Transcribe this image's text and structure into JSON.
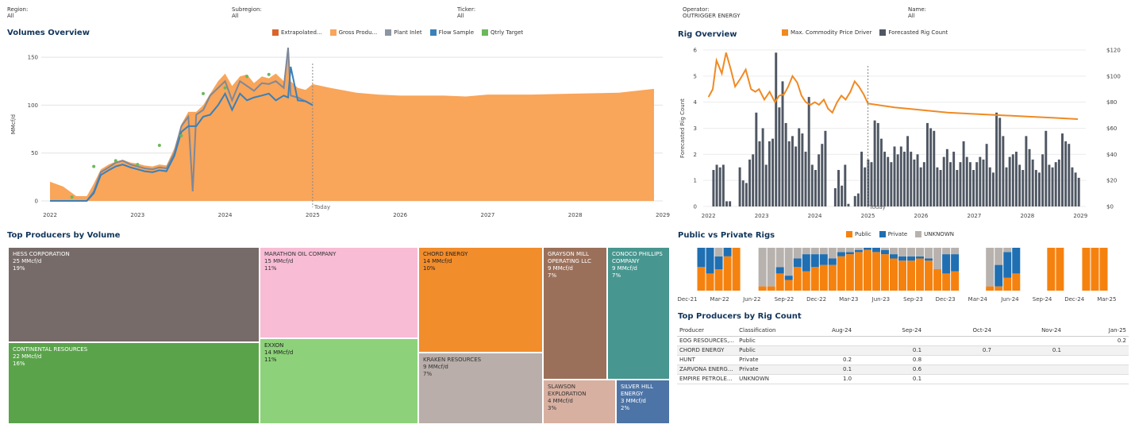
{
  "filters": [
    {
      "label": "Region:",
      "value": "All"
    },
    {
      "label": "Subregion:",
      "value": "All"
    },
    {
      "label": "Ticker:",
      "value": "All"
    },
    {
      "label": "Operator:",
      "value": "OUTRIGGER ENERGY"
    },
    {
      "label": "Name:",
      "value": "All"
    }
  ],
  "volumes": {
    "title": "Volumes Overview",
    "legend": [
      {
        "label": "Extrapolated...",
        "color": "#d9652b"
      },
      {
        "label": "Gross Produ...",
        "color": "#f9a55a"
      },
      {
        "label": "Plant Inlet",
        "color": "#8c95a3"
      },
      {
        "label": "Flow Sample",
        "color": "#3a80b9"
      },
      {
        "label": "Qtrly Target",
        "color": "#6cb85a"
      }
    ],
    "today_label": "Today"
  },
  "rigs": {
    "title": "Rig Overview",
    "legend": [
      {
        "label": "Max. Commodity Price Driver",
        "color": "#f08a24"
      },
      {
        "label": "Forecasted Rig Count",
        "color": "#4f5763"
      }
    ],
    "today_label": "Today"
  },
  "treemap": {
    "title": "Top Producers by Volume",
    "cells": [
      {
        "name": "HESS CORPORATION",
        "volume": "25 MMcf/d",
        "share": "19%",
        "color": "#766b68",
        "text": "#ffffff"
      },
      {
        "name": "CONTINENTAL RESOURCES",
        "volume": "22 MMcf/d",
        "share": "16%",
        "color": "#5aa34b",
        "text": "#ffffff"
      },
      {
        "name": "MARATHON OIL COMPANY",
        "volume": "15 MMcf/d",
        "share": "11%",
        "color": "#f8bcd5",
        "text": "#333333"
      },
      {
        "name": "EXXON",
        "volume": "14 MMcf/d",
        "share": "11%",
        "color": "#8dd27a",
        "text": "#222222"
      },
      {
        "name": "CHORD ENERGY",
        "volume": "14 MMcf/d",
        "share": "10%",
        "color": "#f28d2c",
        "text": "#222222"
      },
      {
        "name": "KRAKEN RESOURCES",
        "volume": "9 MMcf/d",
        "share": "7%",
        "color": "#b9aea9",
        "text": "#333333"
      },
      {
        "name": "GRAYSON MILL OPERATING LLC",
        "volume": "9 MMcf/d",
        "share": "7%",
        "color": "#9b705a",
        "text": "#ffffff"
      },
      {
        "name": "SLAWSON EXPLORATION",
        "volume": "4 MMcf/d",
        "share": "3%",
        "color": "#d8b0a1",
        "text": "#333333"
      },
      {
        "name": "CONOCO PHILLIPS COMPANY",
        "volume": "9 MMcf/d",
        "share": "7%",
        "color": "#47968f",
        "text": "#ffffff"
      },
      {
        "name": "SILVER HILL ENERGY",
        "volume": "3 MMcf/d",
        "share": "2%",
        "color": "#4d74a6",
        "text": "#ffffff"
      }
    ]
  },
  "pvp": {
    "title": "Public vs Private Rigs",
    "legend": [
      {
        "label": "Public",
        "color": "#f5820f"
      },
      {
        "label": "Private",
        "color": "#1f6fb2"
      },
      {
        "label": "UNKNOWN",
        "color": "#b8b2ae"
      }
    ]
  },
  "rig_table": {
    "title": "Top Producers by Rig Count",
    "columns": [
      "Producer",
      "Classification",
      "Aug-24",
      "Sep-24",
      "Oct-24",
      "Nov-24",
      "Jan-25"
    ],
    "rows": [
      [
        "EOG RESOURCES,...",
        "Public",
        "",
        "",
        "",
        "",
        "0.2"
      ],
      [
        "CHORD ENERGY",
        "Public",
        "",
        "0.1",
        "0.7",
        "0.1",
        ""
      ],
      [
        "HUNT",
        "Private",
        "0.2",
        "0.8",
        "",
        "",
        ""
      ],
      [
        "ZARVONA ENERG...",
        "Private",
        "0.1",
        "0.6",
        "",
        "",
        ""
      ],
      [
        "EMPIRE PETROLE...",
        "UNKNOWN",
        "1.0",
        "0.1",
        "",
        "",
        ""
      ]
    ]
  },
  "chart_data": [
    {
      "id": "volumes",
      "type": "area",
      "title": "Volumes Overview",
      "ylabel": "MMcf/d",
      "xlabel": "",
      "ylim": [
        0,
        160
      ],
      "yticks": [
        0,
        50,
        100,
        150
      ],
      "xlim": [
        2021.9,
        2029.0
      ],
      "xticks": [
        2022,
        2023,
        2024,
        2025,
        2026,
        2027,
        2028,
        2029
      ],
      "today": 2025.0,
      "series": [
        {
          "name": "Gross Production",
          "kind": "area",
          "color": "#f9a55a",
          "x": [
            2022.0,
            2022.15,
            2022.3,
            2022.42,
            2022.5,
            2022.58,
            2022.67,
            2022.75,
            2022.83,
            2022.92,
            2023.0,
            2023.08,
            2023.17,
            2023.25,
            2023.33,
            2023.42,
            2023.5,
            2023.58,
            2023.67,
            2023.75,
            2023.83,
            2023.92,
            2024.0,
            2024.08,
            2024.17,
            2024.25,
            2024.33,
            2024.42,
            2024.5,
            2024.58,
            2024.67,
            2024.72,
            2024.75,
            2024.83,
            2024.92,
            2025.0,
            2025.2,
            2025.5,
            2025.75,
            2026.0,
            2026.5,
            2026.75,
            2027.0,
            2027.5,
            2028.0,
            2028.5,
            2028.9
          ],
          "y": [
            20,
            15,
            5,
            5,
            18,
            33,
            38,
            41,
            43,
            40,
            39,
            37,
            36,
            38,
            37,
            55,
            80,
            93,
            93,
            100,
            112,
            125,
            133,
            120,
            130,
            132,
            123,
            130,
            128,
            133,
            125,
            160,
            125,
            118,
            116,
            122,
            118,
            113,
            111,
            110,
            110,
            109,
            111,
            111,
            112,
            113,
            117
          ]
        },
        {
          "name": "Plant Inlet",
          "kind": "line",
          "color": "#7e8899",
          "x": [
            2022.0,
            2022.15,
            2022.3,
            2022.42,
            2022.5,
            2022.58,
            2022.67,
            2022.75,
            2022.83,
            2022.92,
            2023.0,
            2023.08,
            2023.17,
            2023.25,
            2023.33,
            2023.42,
            2023.5,
            2023.58,
            2023.63,
            2023.67,
            2023.75,
            2023.83,
            2023.92,
            2024.0,
            2024.08,
            2024.17,
            2024.25,
            2024.33,
            2024.42,
            2024.5,
            2024.58,
            2024.67,
            2024.72,
            2024.75,
            2024.83,
            2024.92,
            2025.0
          ],
          "y": [
            0,
            0,
            0,
            0,
            10,
            30,
            35,
            40,
            42,
            38,
            36,
            34,
            33,
            35,
            34,
            50,
            78,
            88,
            10,
            90,
            95,
            110,
            118,
            125,
            105,
            125,
            120,
            115,
            123,
            122,
            125,
            118,
            160,
            110,
            108,
            104,
            100
          ]
        },
        {
          "name": "Flow Sample",
          "kind": "line",
          "color": "#3a80b9",
          "x": [
            2022.0,
            2022.15,
            2022.3,
            2022.42,
            2022.5,
            2022.58,
            2022.67,
            2022.75,
            2022.83,
            2022.92,
            2023.0,
            2023.08,
            2023.17,
            2023.25,
            2023.33,
            2023.42,
            2023.5,
            2023.58,
            2023.67,
            2023.75,
            2023.83,
            2023.92,
            2024.0,
            2024.08,
            2024.17,
            2024.25,
            2024.33,
            2024.42,
            2024.5,
            2024.58,
            2024.67,
            2024.72,
            2024.75,
            2024.83,
            2024.92,
            2025.0
          ],
          "y": [
            0,
            0,
            0,
            0,
            8,
            27,
            32,
            36,
            38,
            35,
            33,
            31,
            30,
            32,
            31,
            47,
            72,
            78,
            78,
            88,
            90,
            100,
            112,
            95,
            112,
            105,
            108,
            110,
            112,
            105,
            110,
            108,
            140,
            105,
            104,
            100
          ]
        },
        {
          "name": "Qtrly Target",
          "kind": "points",
          "color": "#6cb85a",
          "x": [
            2022.25,
            2022.5,
            2022.75,
            2023.0,
            2023.25,
            2023.5,
            2023.75,
            2024.0,
            2024.25,
            2024.5
          ],
          "y": [
            4,
            36,
            42,
            38,
            58,
            68,
            112,
            118,
            130,
            132
          ]
        }
      ]
    },
    {
      "id": "rigs",
      "type": "bar",
      "title": "Rig Overview",
      "ylabel": "Forecasted Rig Count",
      "ylim": [
        0,
        6
      ],
      "yticks": [
        0,
        1,
        2,
        3,
        4,
        5,
        6
      ],
      "y2lim": [
        0,
        120
      ],
      "y2ticks": [
        "$0",
        "$20",
        "$40",
        "$60",
        "$80",
        "$100",
        "$120"
      ],
      "xlim": [
        2021.9,
        2029.1
      ],
      "xticks": [
        2022,
        2023,
        2024,
        2025,
        2026,
        2027,
        2028,
        2029
      ],
      "today": 2025.0,
      "series": [
        {
          "name": "Forecasted Rig Count",
          "kind": "bars",
          "color": "#4f5763",
          "values": [
            0,
            1.4,
            1.6,
            1.5,
            1.6,
            0.2,
            0.2,
            0,
            0,
            1.5,
            1.0,
            0.9,
            1.8,
            2.0,
            3.6,
            2.5,
            3.0,
            1.6,
            2.5,
            2.6,
            5.9,
            3.8,
            4.8,
            3.2,
            2.5,
            2.7,
            2.3,
            3.0,
            2.8,
            2.1,
            4.2,
            1.6,
            1.4,
            2.0,
            2.4,
            2.9,
            0,
            0,
            0.7,
            1.4,
            0.8,
            1.6,
            0.1,
            0,
            0.4,
            0.5,
            2.1,
            1.5,
            1.8,
            1.7,
            3.3,
            3.2,
            2.6,
            2.1,
            1.9,
            1.7,
            2.3,
            2.0,
            2.3,
            2.1,
            2.7,
            2.1,
            1.8,
            2.0,
            1.5,
            1.7,
            3.2,
            3.0,
            2.9,
            1.5,
            1.4,
            1.9,
            2.2,
            1.7,
            2.1,
            1.4,
            1.7,
            2.5,
            1.9,
            1.7,
            1.4,
            1.7,
            1.9,
            1.8,
            2.4,
            1.5,
            1.3,
            3.6,
            3.4,
            2.7,
            1.5,
            1.9,
            2.0,
            2.1,
            1.6,
            1.4,
            2.7,
            2.2,
            1.8,
            1.4,
            1.3,
            2.0,
            2.9,
            1.6,
            1.5,
            1.7,
            1.8,
            2.8,
            2.5,
            2.4,
            1.5,
            1.3,
            1.1
          ]
        },
        {
          "name": "Max. Commodity Price Driver",
          "kind": "line",
          "color": "#f08a24",
          "x": [
            2022.0,
            2022.08,
            2022.15,
            2022.25,
            2022.33,
            2022.42,
            2022.5,
            2022.6,
            2022.7,
            2022.8,
            2022.88,
            2022.95,
            2023.05,
            2023.15,
            2023.25,
            2023.33,
            2023.42,
            2023.5,
            2023.58,
            2023.67,
            2023.75,
            2023.83,
            2023.92,
            2024.0,
            2024.08,
            2024.17,
            2024.25,
            2024.33,
            2024.42,
            2024.5,
            2024.58,
            2024.67,
            2024.75,
            2024.83,
            2024.92,
            2025.0,
            2025.5,
            2026.0,
            2026.5,
            2027.0,
            2027.5,
            2028.0,
            2028.5,
            2028.95
          ],
          "y": [
            84,
            90,
            112,
            102,
            118,
            105,
            92,
            98,
            105,
            90,
            88,
            90,
            82,
            88,
            80,
            85,
            86,
            92,
            100,
            95,
            85,
            80,
            78,
            80,
            78,
            82,
            75,
            72,
            80,
            85,
            82,
            88,
            96,
            92,
            86,
            79,
            76,
            74,
            72,
            71,
            70,
            69,
            68,
            67
          ]
        }
      ]
    },
    {
      "id": "public_vs_private",
      "type": "bar",
      "title": "Public vs Private Rigs",
      "stacked": true,
      "normalized": true,
      "xticks": [
        "Dec-21",
        "Mar-22",
        "Jun-22",
        "Sep-22",
        "Dec-22",
        "Mar-23",
        "Jun-23",
        "Sep-23",
        "Dec-23",
        "Mar-24",
        "Jun-24",
        "Sep-24",
        "Dec-24",
        "Mar-25"
      ],
      "series": [
        {
          "name": "Public",
          "color": "#f5820f",
          "values": [
            0.55,
            0.4,
            0.5,
            0.8,
            1.0,
            0,
            0,
            0.1,
            0.1,
            0.4,
            0.25,
            0.55,
            0.45,
            0.55,
            0.6,
            0.6,
            0.8,
            0.85,
            0.9,
            0.95,
            0.9,
            0.85,
            0.75,
            0.7,
            0.7,
            0.75,
            0.7,
            0.5,
            0.4,
            0.45,
            0,
            0,
            0,
            0.1,
            0.1,
            0.3,
            0.4,
            0,
            0,
            0,
            1.0,
            1.0,
            0,
            0,
            1.0,
            1.0,
            1.0
          ]
        },
        {
          "name": "Private",
          "color": "#1f6fb2",
          "values": [
            0.45,
            0.6,
            0.3,
            0.2,
            0,
            0,
            0,
            0,
            0,
            0.15,
            0.1,
            0.2,
            0.4,
            0.3,
            0.25,
            0.15,
            0.1,
            0.05,
            0.05,
            0.05,
            0.1,
            0.1,
            0.1,
            0.1,
            0.1,
            0.05,
            0.05,
            0,
            0.45,
            0.4,
            0,
            0,
            0,
            0,
            0.5,
            0.6,
            0.6,
            0,
            0,
            0,
            0,
            0,
            0,
            0,
            0,
            0,
            0
          ]
        },
        {
          "name": "UNKNOWN",
          "color": "#b8b2ae",
          "values": [
            0,
            0,
            0.2,
            0,
            0,
            0,
            0,
            0.9,
            0.9,
            0.45,
            0.65,
            0.25,
            0.15,
            0.15,
            0.15,
            0.25,
            0.1,
            0.1,
            0.05,
            0,
            0,
            0.05,
            0.15,
            0.2,
            0.2,
            0.2,
            0.25,
            0.5,
            0.15,
            0.15,
            0,
            0,
            0,
            0.9,
            0.4,
            0.1,
            0,
            0,
            0,
            0,
            0,
            0,
            0,
            0,
            0,
            0,
            0
          ]
        }
      ]
    }
  ]
}
